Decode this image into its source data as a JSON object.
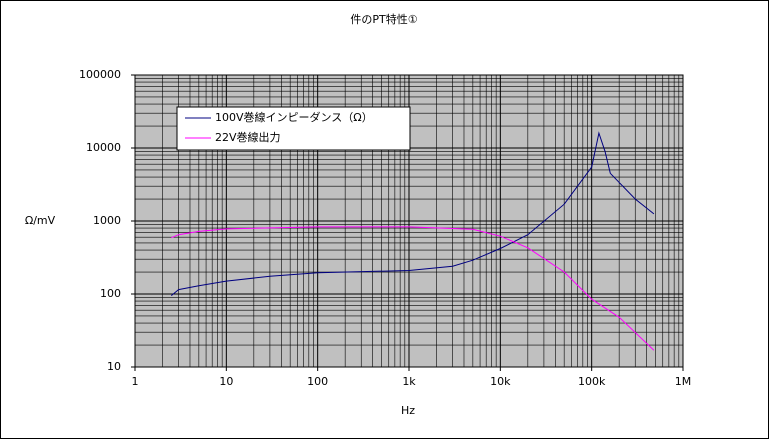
{
  "chart_data": {
    "type": "line",
    "title": "件のPT特性①",
    "xlabel": "Hz",
    "ylabel": "Ω/mV",
    "xscale": "log",
    "yscale": "log",
    "grid": true,
    "legend": "upper left",
    "xlim": [
      1,
      1000000
    ],
    "xticks": [
      1,
      10,
      100,
      {
        "value": 1000,
        "label": "1k"
      },
      {
        "value": 10000,
        "label": "10k"
      },
      {
        "value": 100000,
        "label": "100k"
      },
      {
        "value": 1000000,
        "label": "1M"
      }
    ],
    "ylim": [
      10,
      100000
    ],
    "yticks": [
      10,
      100,
      1000,
      10000,
      100000
    ],
    "series": [
      {
        "name": "100V巻線インピーダンス（Ω）",
        "color": "#000080",
        "x": [
          2.5,
          3,
          5,
          10,
          30,
          100,
          1000,
          3000,
          5000,
          10000,
          20000,
          50000,
          100000,
          120000,
          140000,
          160000,
          300000,
          480000
        ],
        "values": [
          95,
          115,
          130,
          150,
          175,
          195,
          210,
          240,
          290,
          420,
          650,
          1700,
          5500,
          16000,
          9000,
          4500,
          2000,
          1250
        ]
      },
      {
        "name": "22V巻線出力",
        "color": "#ff00ff",
        "x": [
          2.5,
          3,
          5,
          10,
          100,
          1000,
          5000,
          10000,
          20000,
          50000,
          100000,
          200000,
          480000
        ],
        "values": [
          590,
          650,
          720,
          780,
          830,
          830,
          770,
          620,
          430,
          200,
          85,
          48,
          17
        ]
      }
    ]
  }
}
